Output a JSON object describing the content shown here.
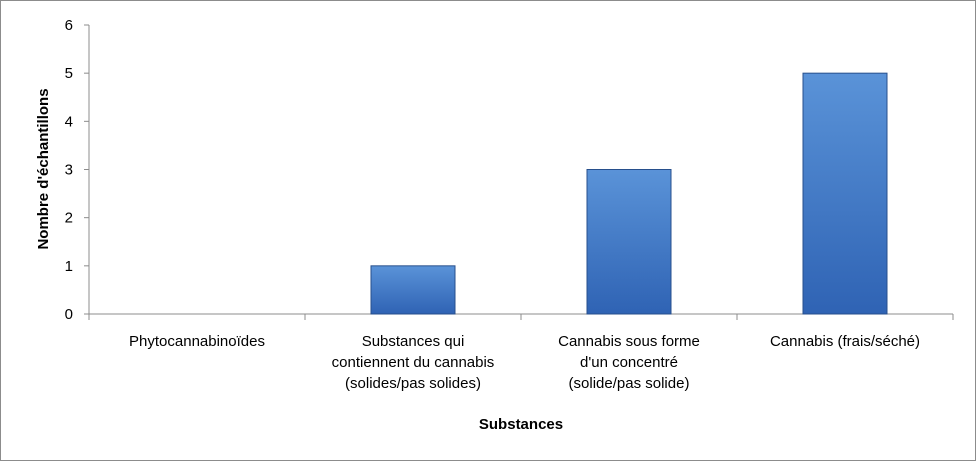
{
  "chart_data": {
    "type": "bar",
    "categories": [
      [
        "Phytocannabinoïdes"
      ],
      [
        "Substances qui",
        "contiennent du cannabis",
        "(solides/pas solides)"
      ],
      [
        "Cannabis sous forme",
        "d'un concentré",
        "(solide/pas solide)"
      ],
      [
        "Cannabis (frais/séché)"
      ]
    ],
    "values": [
      0,
      1,
      3,
      5
    ],
    "xlabel": "Substances",
    "ylabel": "Nombre d'échantillons",
    "ylim": [
      0,
      6
    ],
    "yticks": [
      "0",
      "1",
      "2",
      "3",
      "4",
      "5",
      "6"
    ],
    "grid": false,
    "legend": "none",
    "colors": {
      "bar_fill_top": "#5a93d8",
      "bar_fill_bottom": "#2f63b4",
      "bar_stroke": "#274f8c",
      "axis": "#8c8c8c"
    }
  }
}
